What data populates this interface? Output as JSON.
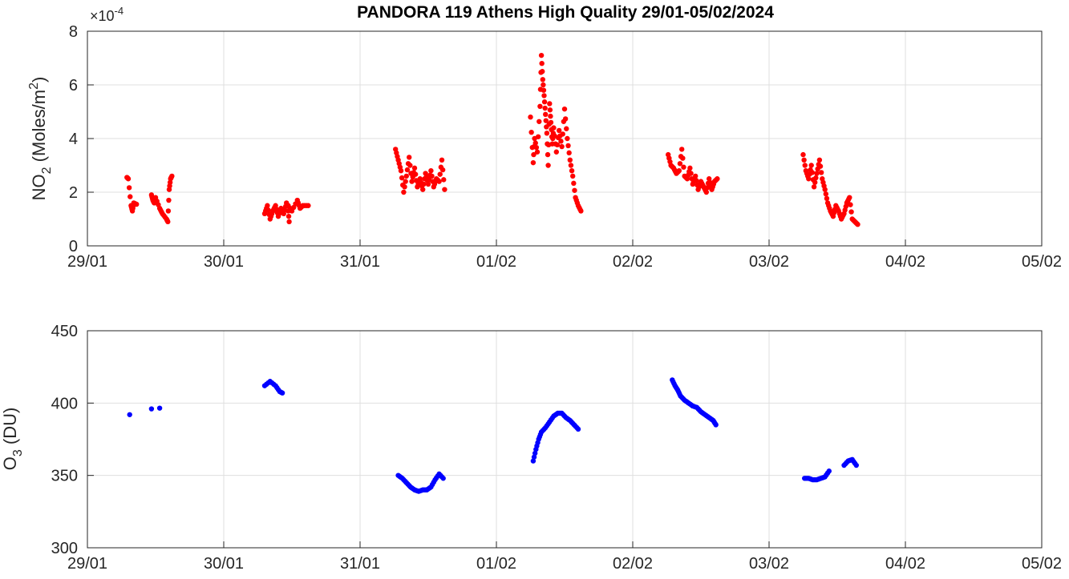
{
  "title": "PANDORA 119 Athens High Quality 29/01-05/02/2024",
  "chart_data": [
    {
      "type": "scatter",
      "name": "no2-panel",
      "ylabel": {
        "main": "NO",
        "sub": "2",
        "rest": " (Moles/m",
        "sup": "2",
        "end": ")"
      },
      "multiplier": {
        "base": "×10",
        "exp": "-4"
      },
      "xlim": [
        "2024-01-29",
        "2024-02-05"
      ],
      "x_ticks": [
        "29/01",
        "30/01",
        "31/01",
        "01/02",
        "02/02",
        "03/02",
        "04/02",
        "05/02"
      ],
      "ylim": [
        0,
        8
      ],
      "y_ticks": [
        "0",
        "2",
        "4",
        "6",
        "8"
      ],
      "y_tick_values": [
        0,
        2,
        4,
        6,
        8
      ],
      "grid": true,
      "color": "#ff0000",
      "x_units": "days since 2024-01-29",
      "clusters": [
        [
          [
            0.29,
            2.55
          ],
          [
            0.3,
            2.5
          ],
          [
            0.32,
            1.5
          ],
          [
            0.33,
            1.3
          ],
          [
            0.34,
            1.6
          ],
          [
            0.36,
            1.55
          ],
          [
            0.47,
            1.9
          ],
          [
            0.48,
            1.7
          ],
          [
            0.49,
            1.6
          ],
          [
            0.5,
            1.8
          ],
          [
            0.53,
            1.4
          ],
          [
            0.55,
            1.2
          ],
          [
            0.58,
            1.0
          ],
          [
            0.59,
            0.9
          ],
          [
            0.6,
            2.1
          ],
          [
            0.61,
            2.5
          ],
          [
            0.62,
            2.6
          ]
        ],
        [
          [
            1.47,
            1.5
          ],
          [
            1.48,
            0.9
          ]
        ],
        [
          [
            1.3,
            1.2
          ],
          [
            1.32,
            1.5
          ],
          [
            1.34,
            1.0
          ],
          [
            1.36,
            1.3
          ],
          [
            1.38,
            1.5
          ],
          [
            1.4,
            1.1
          ],
          [
            1.42,
            1.4
          ],
          [
            1.44,
            1.2
          ],
          [
            1.46,
            1.6
          ],
          [
            1.5,
            1.3
          ],
          [
            1.54,
            1.7
          ],
          [
            1.56,
            1.4
          ],
          [
            1.58,
            1.5
          ],
          [
            1.62,
            1.5
          ]
        ],
        [
          [
            2.26,
            3.6
          ],
          [
            2.28,
            3.2
          ],
          [
            2.3,
            2.8
          ],
          [
            2.32,
            2.0
          ],
          [
            2.34,
            2.6
          ],
          [
            2.36,
            3.3
          ],
          [
            2.38,
            2.4
          ],
          [
            2.4,
            2.9
          ],
          [
            2.42,
            2.2
          ],
          [
            2.44,
            2.5
          ],
          [
            2.46,
            2.1
          ],
          [
            2.48,
            2.7
          ],
          [
            2.5,
            2.3
          ],
          [
            2.52,
            2.8
          ],
          [
            2.54,
            2.2
          ],
          [
            2.56,
            2.5
          ],
          [
            2.58,
            2.4
          ],
          [
            2.6,
            3.2
          ],
          [
            2.62,
            2.1
          ]
        ],
        [
          [
            3.25,
            4.8
          ],
          [
            3.27,
            3.1
          ],
          [
            3.28,
            4.0
          ],
          [
            3.3,
            3.5
          ],
          [
            3.32,
            5.2
          ],
          [
            3.33,
            7.1
          ],
          [
            3.34,
            6.2
          ],
          [
            3.35,
            5.6
          ],
          [
            3.36,
            4.9
          ],
          [
            3.37,
            4.2
          ],
          [
            3.38,
            3.0
          ],
          [
            3.39,
            5.3
          ],
          [
            3.4,
            4.6
          ],
          [
            3.41,
            3.8
          ],
          [
            3.42,
            4.4
          ],
          [
            3.44,
            3.5
          ],
          [
            3.46,
            4.3
          ],
          [
            3.48,
            3.7
          ],
          [
            3.5,
            5.1
          ],
          [
            3.52,
            4.0
          ],
          [
            3.54,
            3.2
          ],
          [
            3.56,
            2.6
          ],
          [
            3.58,
            1.8
          ],
          [
            3.6,
            1.5
          ],
          [
            3.62,
            1.3
          ]
        ],
        [
          [
            4.26,
            3.4
          ],
          [
            4.28,
            3.0
          ],
          [
            4.3,
            2.9
          ],
          [
            4.32,
            2.7
          ],
          [
            4.34,
            2.8
          ],
          [
            4.36,
            3.6
          ],
          [
            4.38,
            2.6
          ],
          [
            4.4,
            2.5
          ],
          [
            4.42,
            2.9
          ],
          [
            4.44,
            2.3
          ],
          [
            4.46,
            2.6
          ],
          [
            4.48,
            2.1
          ],
          [
            4.5,
            2.4
          ],
          [
            4.52,
            2.2
          ],
          [
            4.54,
            2.0
          ],
          [
            4.56,
            2.5
          ],
          [
            4.58,
            2.1
          ],
          [
            4.6,
            2.4
          ],
          [
            4.62,
            2.5
          ]
        ],
        [
          [
            5.25,
            3.4
          ],
          [
            5.27,
            2.8
          ],
          [
            5.29,
            2.5
          ],
          [
            5.31,
            3.0
          ],
          [
            5.33,
            2.2
          ],
          [
            5.35,
            2.7
          ],
          [
            5.37,
            3.2
          ],
          [
            5.39,
            2.5
          ],
          [
            5.41,
            2.1
          ],
          [
            5.43,
            1.6
          ],
          [
            5.45,
            1.3
          ],
          [
            5.47,
            1.1
          ],
          [
            5.49,
            1.5
          ],
          [
            5.51,
            1.3
          ],
          [
            5.53,
            1.0
          ],
          [
            5.55,
            1.2
          ],
          [
            5.57,
            1.6
          ],
          [
            5.59,
            1.8
          ],
          [
            5.61,
            1.0
          ],
          [
            5.63,
            0.9
          ],
          [
            5.65,
            0.8
          ]
        ]
      ]
    },
    {
      "type": "scatter",
      "name": "o3-panel",
      "ylabel": {
        "main": "O",
        "sub": "3",
        "rest": " (DU)"
      },
      "xlim": [
        "2024-01-29",
        "2024-02-05"
      ],
      "x_ticks": [
        "29/01",
        "30/01",
        "31/01",
        "01/02",
        "02/02",
        "03/02",
        "04/02",
        "05/02"
      ],
      "ylim": [
        300,
        450
      ],
      "y_ticks": [
        "300",
        "350",
        "400",
        "450"
      ],
      "y_tick_values": [
        300,
        350,
        400,
        450
      ],
      "grid": true,
      "color": "#0000ff",
      "x_units": "days since 2024-01-29",
      "clusters": [
        [
          [
            0.31,
            392
          ],
          [
            0.47,
            396
          ],
          [
            0.53,
            396.5
          ]
        ],
        [
          [
            1.3,
            412
          ],
          [
            1.34,
            415
          ],
          [
            1.38,
            412
          ],
          [
            1.41,
            408
          ],
          [
            1.43,
            407
          ]
        ],
        [
          [
            2.28,
            350
          ],
          [
            2.31,
            348
          ],
          [
            2.34,
            345
          ],
          [
            2.37,
            342
          ],
          [
            2.4,
            340
          ],
          [
            2.43,
            339
          ],
          [
            2.46,
            340
          ],
          [
            2.49,
            340
          ],
          [
            2.52,
            342
          ],
          [
            2.55,
            347
          ],
          [
            2.58,
            351
          ],
          [
            2.61,
            348
          ]
        ],
        [
          [
            3.27,
            360
          ],
          [
            3.29,
            368
          ],
          [
            3.31,
            375
          ],
          [
            3.33,
            380
          ],
          [
            3.36,
            383
          ],
          [
            3.39,
            387
          ],
          [
            3.42,
            391
          ],
          [
            3.45,
            393
          ],
          [
            3.48,
            393
          ],
          [
            3.51,
            390
          ],
          [
            3.54,
            388
          ],
          [
            3.57,
            385
          ],
          [
            3.6,
            382
          ]
        ],
        [
          [
            4.29,
            416
          ],
          [
            4.31,
            412
          ],
          [
            4.33,
            409
          ],
          [
            4.35,
            405
          ],
          [
            4.38,
            402
          ],
          [
            4.41,
            400
          ],
          [
            4.44,
            398
          ],
          [
            4.47,
            397
          ],
          [
            4.5,
            394
          ],
          [
            4.53,
            392
          ],
          [
            4.56,
            390
          ],
          [
            4.59,
            388
          ],
          [
            4.61,
            385
          ]
        ],
        [
          [
            5.26,
            348
          ],
          [
            5.29,
            348
          ],
          [
            5.32,
            347
          ],
          [
            5.35,
            347
          ],
          [
            5.38,
            348
          ],
          [
            5.41,
            349
          ],
          [
            5.44,
            353
          ],
          [
            5.55,
            357
          ],
          [
            5.58,
            360
          ],
          [
            5.61,
            361
          ],
          [
            5.64,
            357
          ]
        ]
      ]
    }
  ]
}
